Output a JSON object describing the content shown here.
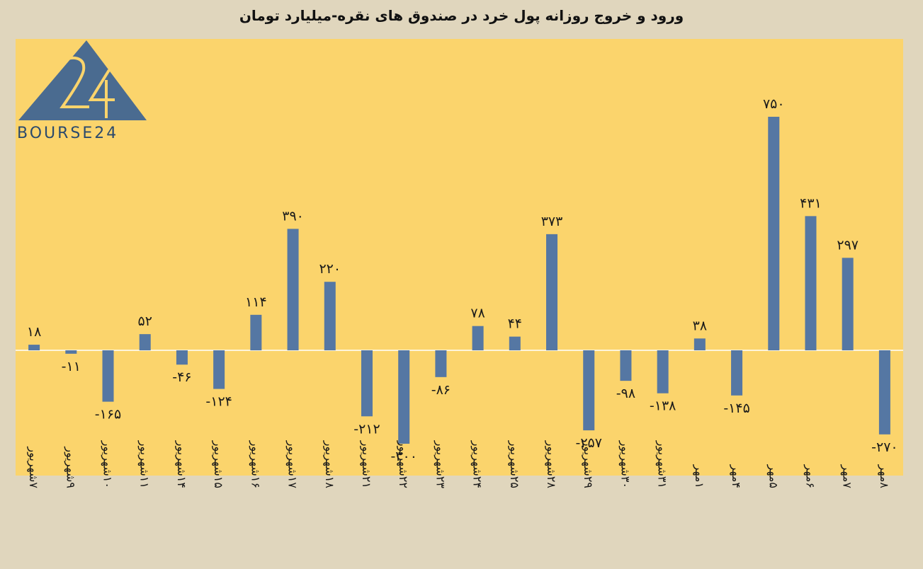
{
  "title": "ورود و خروج روزانه پول خرد در صندوق های نقره-میلیارد تومان",
  "logo_text": "BOURSE24",
  "colors": {
    "bar": "#5577a3",
    "plot_bg": "#fbd46c",
    "page_bg": "#e0d6bd",
    "logo": "#4a6b90"
  },
  "chart_data": {
    "type": "bar",
    "categories": [
      "۷شهریور",
      "۹شهریور",
      "۱۰شهریور",
      "۱۱شهریور",
      "۱۴شهریور",
      "۱۵شهریور",
      "۱۶شهریور",
      "۱۷شهریور",
      "۱۸شهریور",
      "۲۱شهریور",
      "۲۲شهریور",
      "۲۳شهریور",
      "۲۴شهریور",
      "۲۵شهریور",
      "۲۸شهریور",
      "۲۹شهریور",
      "۳۰شهریور",
      "۳۱شهریور",
      "۱مهر",
      "۴مهر",
      "۵مهر",
      "۶مهر",
      "۷مهر",
      "۸مهر"
    ],
    "values": [
      18,
      -11,
      -165,
      52,
      -46,
      -124,
      114,
      390,
      220,
      -212,
      -300,
      -86,
      78,
      44,
      373,
      -257,
      -98,
      -138,
      38,
      -145,
      750,
      431,
      297,
      -270
    ],
    "data_labels": [
      "۱۸",
      "-۱۱",
      "-۱۶۵",
      "۵۲",
      "-۴۶",
      "-۱۲۴",
      "۱۱۴",
      "۳۹۰",
      "۲۲۰",
      "-۲۱۲",
      "-۳۰۰",
      "-۸۶",
      "۷۸",
      "۴۴",
      "۳۷۳",
      "-۲۵۷",
      "-۹۸",
      "-۱۳۸",
      "۳۸",
      "-۱۴۵",
      "۷۵۰",
      "۴۳۱",
      "۲۹۷",
      "-۲۷۰"
    ],
    "ylim": [
      -400,
      800
    ],
    "grid": false,
    "legend": "none"
  }
}
